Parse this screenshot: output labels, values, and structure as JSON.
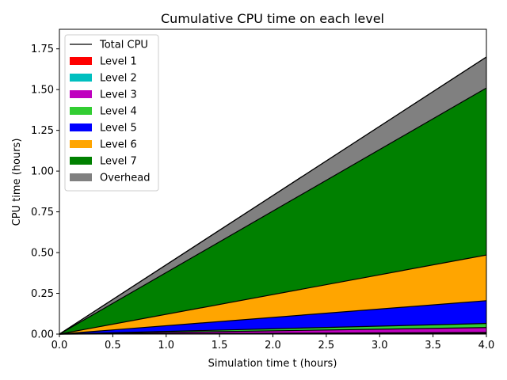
{
  "chart_data": {
    "type": "area",
    "stacked": true,
    "title": "Cumulative CPU time on each level",
    "xlabel": "Simulation time t (hours)",
    "ylabel": "CPU time (hours)",
    "xlim": [
      0,
      4
    ],
    "ylim": [
      0,
      1.87
    ],
    "xticks": [
      0,
      0.5,
      1,
      1.5,
      2,
      2.5,
      3,
      3.5,
      4
    ],
    "xtick_labels": [
      "0.0",
      "0.5",
      "1.0",
      "1.5",
      "2.0",
      "2.5",
      "3.0",
      "3.5",
      "4.0"
    ],
    "yticks": [
      0,
      0.25,
      0.5,
      0.75,
      1,
      1.25,
      1.5,
      1.75
    ],
    "ytick_labels": [
      "0.00",
      "0.25",
      "0.50",
      "0.75",
      "1.00",
      "1.25",
      "1.50",
      "1.75"
    ],
    "grid": false,
    "legend_position": "top-left",
    "x": [
      0,
      4
    ],
    "series": [
      {
        "name": "Level 1",
        "color": "#ff0000",
        "values": [
          0,
          0.005
        ]
      },
      {
        "name": "Level 2",
        "color": "#00bfbf",
        "values": [
          0,
          0.005
        ]
      },
      {
        "name": "Level 3",
        "color": "#bf00bf",
        "values": [
          0,
          0.03
        ]
      },
      {
        "name": "Level 4",
        "color": "#32cd32",
        "values": [
          0,
          0.025
        ]
      },
      {
        "name": "Level 5",
        "color": "#0000ff",
        "values": [
          0,
          0.14
        ]
      },
      {
        "name": "Level 6",
        "color": "#ffa500",
        "values": [
          0,
          0.28
        ]
      },
      {
        "name": "Level 7",
        "color": "#008000",
        "values": [
          0,
          1.025
        ]
      },
      {
        "name": "Overhead",
        "color": "#808080",
        "values": [
          0,
          0.19
        ]
      }
    ],
    "total_line": {
      "name": "Total CPU",
      "color": "#000000",
      "values": [
        0,
        1.7
      ]
    }
  }
}
